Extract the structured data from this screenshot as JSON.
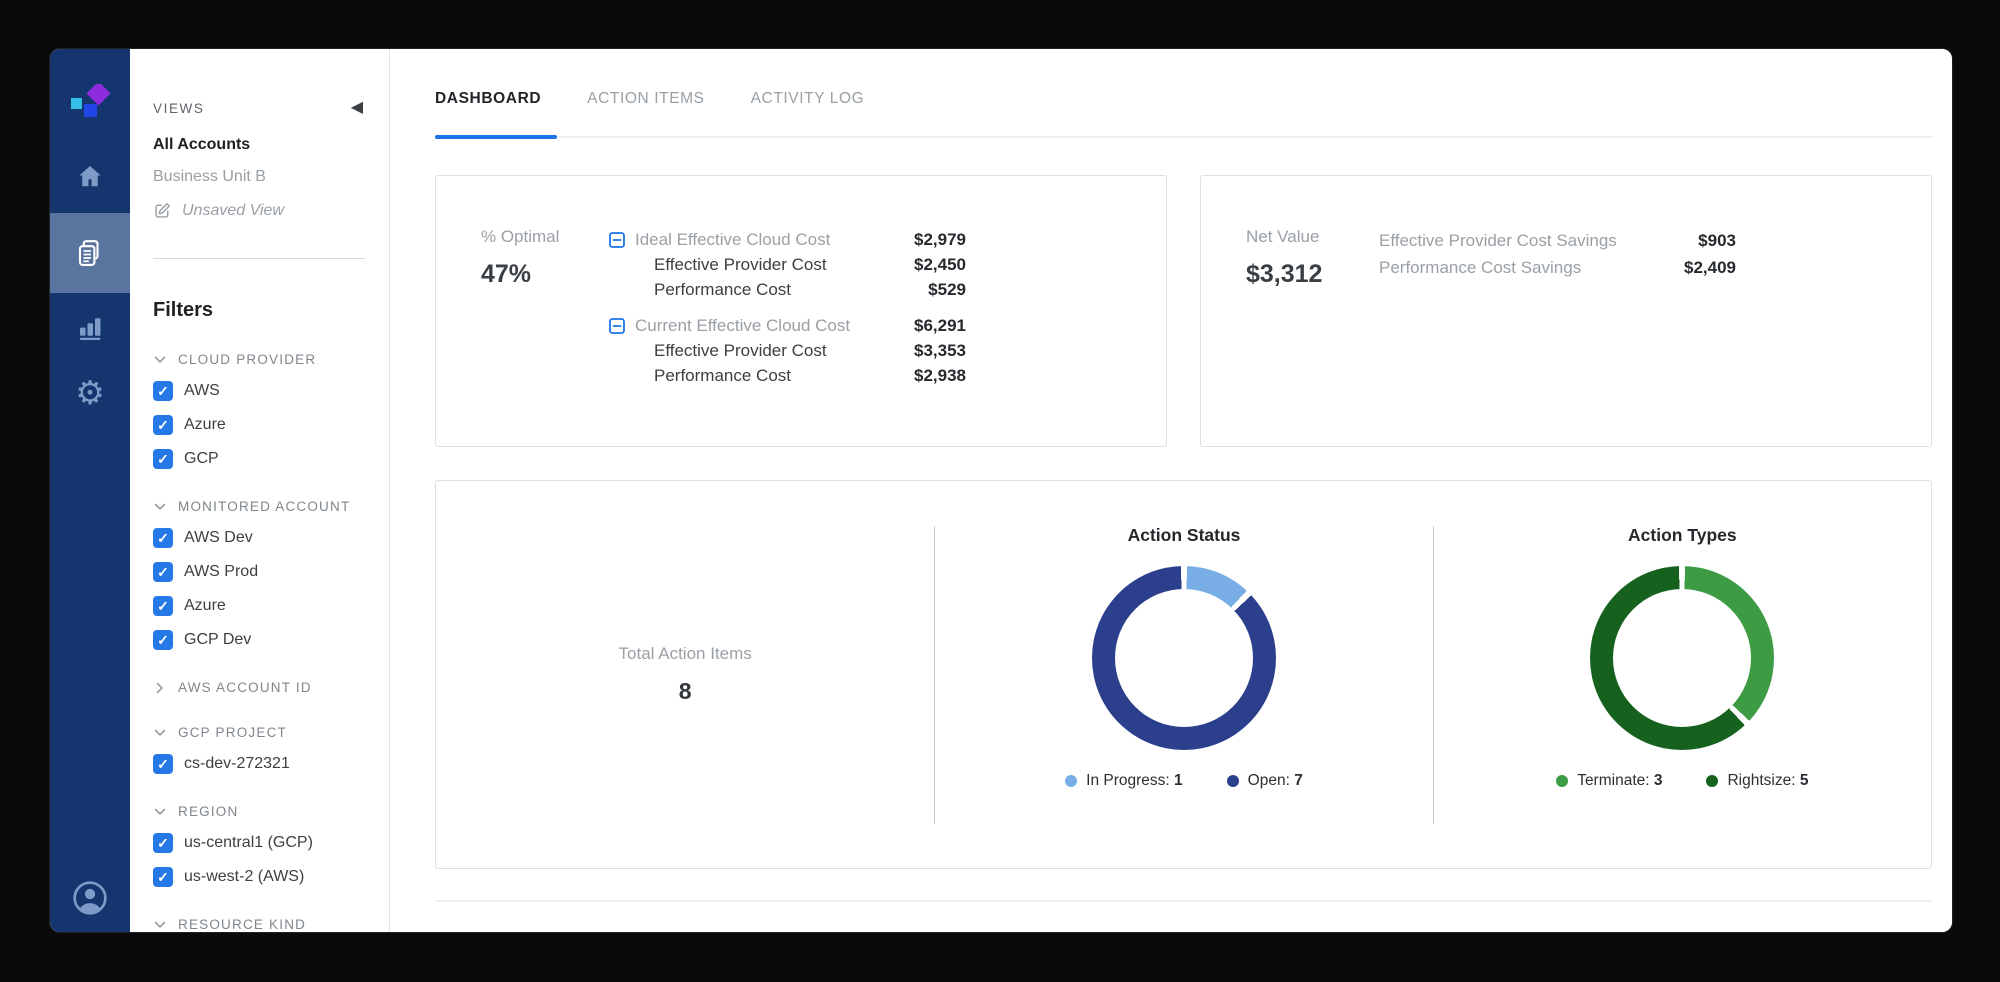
{
  "colors": {
    "nav_rail": "#14356D",
    "nav_active_bg": "#5A74A0",
    "nav_icon": "#7E9AC6",
    "checkbox_blue": "#2579E6",
    "tab_underline": "#1A73E8",
    "status_in_progress": "#79ADE6",
    "status_open": "#2B3F8C",
    "type_terminate": "#3D9B43",
    "type_rightsize": "#17611F"
  },
  "nav": {
    "items": [
      {
        "id": "home",
        "icon": "home-icon"
      },
      {
        "id": "views",
        "icon": "documents-icon",
        "active": true
      },
      {
        "id": "analytics",
        "icon": "bar-chart-icon"
      },
      {
        "id": "settings",
        "icon": "gear-icon",
        "glyph": "⚙"
      }
    ]
  },
  "views_panel": {
    "title": "VIEWS",
    "collapse_icon": "◀",
    "views": [
      {
        "label": "All Accounts",
        "active": true
      },
      {
        "label": "Business Unit B",
        "active": false
      }
    ],
    "unsaved_view_label": "Unsaved View",
    "filters_title": "Filters",
    "filter_groups": [
      {
        "label": "CLOUD PROVIDER",
        "expanded": true,
        "items": [
          {
            "label": "AWS",
            "checked": true
          },
          {
            "label": "Azure",
            "checked": true
          },
          {
            "label": "GCP",
            "checked": true
          }
        ]
      },
      {
        "label": "MONITORED ACCOUNT",
        "expanded": true,
        "items": [
          {
            "label": "AWS Dev",
            "checked": true
          },
          {
            "label": "AWS Prod",
            "checked": true
          },
          {
            "label": "Azure",
            "checked": true
          },
          {
            "label": "GCP Dev",
            "checked": true
          }
        ]
      },
      {
        "label": "AWS ACCOUNT ID",
        "expanded": false,
        "items": []
      },
      {
        "label": "GCP PROJECT",
        "expanded": true,
        "items": [
          {
            "label": "cs-dev-272321",
            "checked": true
          }
        ]
      },
      {
        "label": "REGION",
        "expanded": true,
        "items": [
          {
            "label": "us-central1 (GCP)",
            "checked": true
          },
          {
            "label": "us-west-2 (AWS)",
            "checked": true
          }
        ]
      },
      {
        "label": "RESOURCE KIND",
        "expanded": true,
        "items": []
      }
    ]
  },
  "tabs": [
    {
      "label": "DASHBOARD",
      "active": true
    },
    {
      "label": "ACTION ITEMS",
      "active": false
    },
    {
      "label": "ACTIVITY LOG",
      "active": false
    }
  ],
  "optimal_card": {
    "metric_label": "% Optimal",
    "metric_value": "47%",
    "groups": [
      {
        "label": "Ideal Effective Cloud Cost",
        "value": "$2,979",
        "children": [
          {
            "label": "Effective Provider Cost",
            "value": "$2,450"
          },
          {
            "label": "Performance Cost",
            "value": "$529"
          }
        ]
      },
      {
        "label": "Current Effective Cloud Cost",
        "value": "$6,291",
        "children": [
          {
            "label": "Effective Provider Cost",
            "value": "$3,353"
          },
          {
            "label": "Performance Cost",
            "value": "$2,938"
          }
        ]
      }
    ]
  },
  "net_value_card": {
    "metric_label": "Net Value",
    "metric_value": "$3,312",
    "rows": [
      {
        "label": "Effective Provider Cost Savings",
        "value": "$903"
      },
      {
        "label": "Performance Cost Savings",
        "value": "$2,409"
      }
    ]
  },
  "actions_card": {
    "total_label": "Total Action Items",
    "total_value": "8"
  },
  "chart_data": [
    {
      "type": "pie",
      "donut": true,
      "title": "Action Status",
      "labels": [
        "In Progress",
        "Open"
      ],
      "values": [
        1,
        7
      ],
      "colors": [
        "#79ADE6",
        "#2B3F8C"
      ],
      "legend_position": "bottom"
    },
    {
      "type": "pie",
      "donut": true,
      "title": "Action Types",
      "labels": [
        "Terminate",
        "Rightsize"
      ],
      "values": [
        3,
        5
      ],
      "colors": [
        "#3D9B43",
        "#17611F"
      ],
      "legend_position": "bottom"
    }
  ]
}
